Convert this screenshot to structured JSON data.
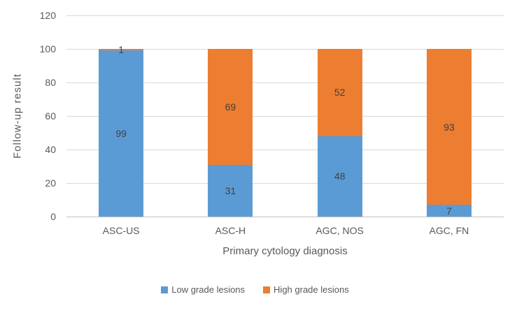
{
  "chart_data": {
    "type": "bar",
    "stacked": true,
    "categories": [
      "ASC-US",
      "ASC-H",
      "AGC, NOS",
      "AGC, FN"
    ],
    "series": [
      {
        "name": "Low grade lesions",
        "color": "#5B9BD5",
        "values": [
          99,
          31,
          48,
          7
        ]
      },
      {
        "name": "High grade lesions",
        "color": "#ED7D31",
        "values": [
          1,
          69,
          52,
          93
        ]
      }
    ],
    "title": "",
    "xlabel": "Primary cytology diagnosis",
    "ylabel": "Follow-up result",
    "ylim": [
      0,
      120
    ],
    "yticks": [
      0,
      20,
      40,
      60,
      80,
      100,
      120
    ],
    "grid": "horizontal",
    "legend_position": "bottom",
    "data_labels": true
  },
  "colors": {
    "background": "#FFFFFF",
    "gridline": "#D9D9D9",
    "axis_line": "#BFBFBF",
    "axis_text": "#595959",
    "data_label_text": "#404040"
  }
}
